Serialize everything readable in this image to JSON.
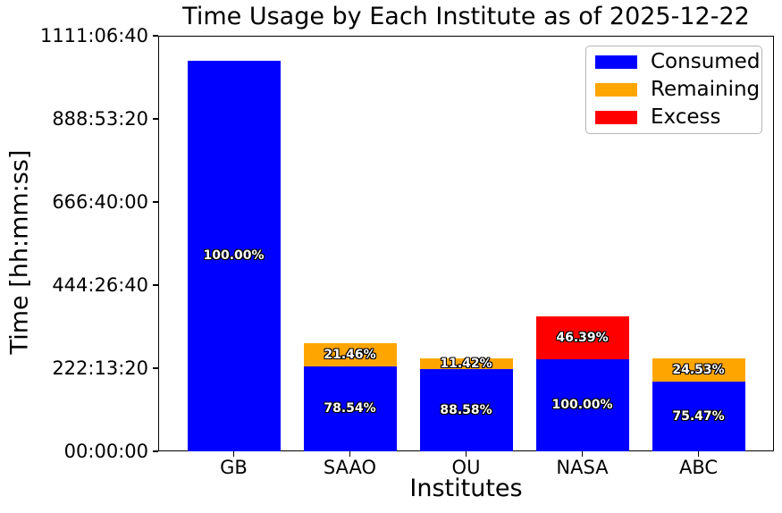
{
  "chart_data": {
    "type": "bar",
    "stacked": true,
    "title": "Time Usage by Each Institute as of 2025-12-22",
    "xlabel": "Institutes",
    "ylabel": "Time [hh:mm:ss]",
    "x_categories": [
      "GB",
      "SAAO",
      "OU",
      "NASA",
      "ABC"
    ],
    "y_axis": {
      "unit": "seconds",
      "ylim": [
        0,
        4000000
      ],
      "grid": false,
      "ticks": [
        {
          "label": "00:00:00",
          "seconds": 0
        },
        {
          "label": "222:13:20",
          "seconds": 800000
        },
        {
          "label": "444:26:40",
          "seconds": 1600000
        },
        {
          "label": "666:40:00",
          "seconds": 2400000
        },
        {
          "label": "888:53:20",
          "seconds": 3200000
        },
        {
          "label": "1111:06:40",
          "seconds": 4000000
        }
      ]
    },
    "series_colors": {
      "Consumed": "#0000ff",
      "Remaining": "#ffa500",
      "Excess": "#ff0000"
    },
    "bars": [
      {
        "category": "GB",
        "segments": [
          {
            "series": "Consumed",
            "seconds": 3760000,
            "label": "100.00%"
          }
        ]
      },
      {
        "category": "SAAO",
        "segments": [
          {
            "series": "Consumed",
            "seconds": 820000,
            "label": "78.54%"
          },
          {
            "series": "Remaining",
            "seconds": 224000,
            "label": "21.46%"
          }
        ]
      },
      {
        "category": "OU",
        "segments": [
          {
            "series": "Consumed",
            "seconds": 795000,
            "label": "88.58%"
          },
          {
            "series": "Remaining",
            "seconds": 102500,
            "label": "11.42%"
          }
        ]
      },
      {
        "category": "NASA",
        "segments": [
          {
            "series": "Consumed",
            "seconds": 890000,
            "label": "100.00%"
          },
          {
            "series": "Excess",
            "seconds": 412900,
            "label": "46.39%"
          }
        ]
      },
      {
        "category": "ABC",
        "segments": [
          {
            "series": "Consumed",
            "seconds": 675000,
            "label": "75.47%"
          },
          {
            "series": "Remaining",
            "seconds": 219400,
            "label": "24.53%"
          }
        ]
      }
    ],
    "legend": {
      "position": "upper right",
      "entries": [
        {
          "label": "Consumed",
          "color": "#0000ff"
        },
        {
          "label": "Remaining",
          "color": "#ffa500"
        },
        {
          "label": "Excess",
          "color": "#ff0000"
        }
      ]
    },
    "bar_label_style": {
      "color": "#ffffff",
      "outline": "#000000",
      "bold": true
    },
    "text_color": "#000000"
  }
}
